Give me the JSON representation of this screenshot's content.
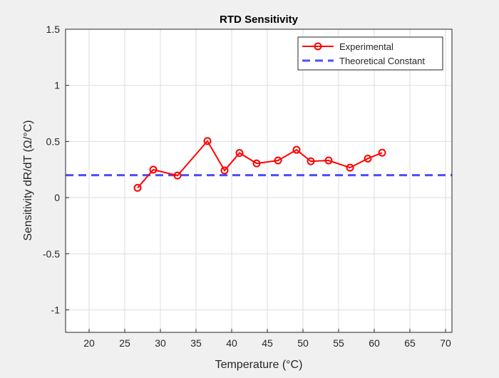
{
  "chart_data": {
    "type": "line",
    "title": "RTD Sensitivity",
    "xlabel": "Temperature (°C)",
    "ylabel": "Sensitivity dR/dT (Ω/°C)",
    "xlim": [
      16.7,
      70.9
    ],
    "ylim": [
      -1.2,
      1.5
    ],
    "xticks": [
      20,
      25,
      30,
      35,
      40,
      45,
      50,
      55,
      60,
      65,
      70
    ],
    "yticks": [
      -1,
      -0.5,
      0,
      0.5,
      1,
      1.5
    ],
    "ytick_labels": [
      "-1",
      "-0.5",
      "0",
      "0.5",
      "1",
      "1.5"
    ],
    "grid": true,
    "legend_position": "top-right",
    "series": [
      {
        "name": "Experimental",
        "color": "#ff0000",
        "style": "solid-circle-markers",
        "x": [
          26.8,
          29.0,
          32.4,
          36.6,
          39.0,
          41.1,
          43.5,
          46.5,
          49.1,
          51.1,
          53.6,
          56.6,
          59.1,
          61.1
        ],
        "y": [
          0.087,
          0.249,
          0.197,
          0.504,
          0.242,
          0.398,
          0.305,
          0.331,
          0.426,
          0.324,
          0.331,
          0.267,
          0.348,
          0.4
        ]
      },
      {
        "name": "Theoretical Constant",
        "color": "#4d4dff",
        "style": "dashed",
        "y_constant": 0.2
      }
    ]
  }
}
